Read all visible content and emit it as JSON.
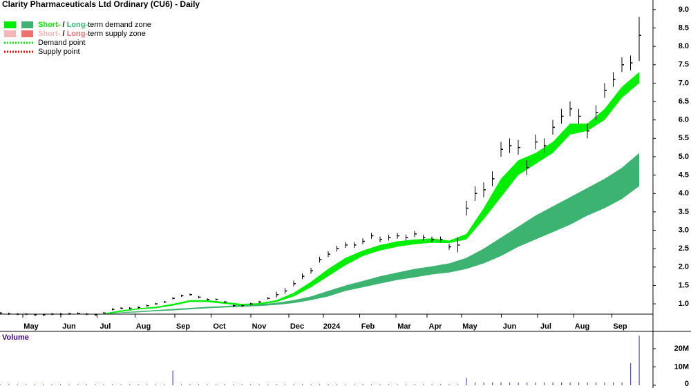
{
  "chart_data": {
    "type": "stock",
    "title": "Clarity Pharmaceuticals Ltd Ordinary (CU6) - Daily",
    "legend": [
      {
        "parts": [
          "Short-",
          " / ",
          "Long-",
          "term demand zone"
        ],
        "colors": [
          "#00ee00",
          "#3cb371"
        ]
      },
      {
        "parts": [
          "Short-",
          " / ",
          "Long-",
          "term supply zone"
        ],
        "colors": [
          "#f4b6b6",
          "#f07070"
        ]
      },
      {
        "parts": [
          "Demand point"
        ],
        "colors": [
          "#00ee00"
        ]
      },
      {
        "parts": [
          "Supply point"
        ],
        "colors": [
          "#ee0000"
        ]
      }
    ],
    "xlim": [
      0,
      378
    ],
    "xticks": [
      {
        "value": 18,
        "label": "May"
      },
      {
        "value": 40,
        "label": "Jun"
      },
      {
        "value": 61,
        "label": "Jul"
      },
      {
        "value": 83,
        "label": "Aug"
      },
      {
        "value": 106,
        "label": "Sep"
      },
      {
        "value": 127,
        "label": "Oct"
      },
      {
        "value": 150,
        "label": "Nov"
      },
      {
        "value": 172,
        "label": "Dec"
      },
      {
        "value": 192,
        "label": "2024"
      },
      {
        "value": 213,
        "label": "Feb"
      },
      {
        "value": 234,
        "label": "Mar"
      },
      {
        "value": 252,
        "label": "Apr"
      },
      {
        "value": 272,
        "label": "May"
      },
      {
        "value": 295,
        "label": "Jun"
      },
      {
        "value": 316,
        "label": "Jul"
      },
      {
        "value": 337,
        "label": "Aug"
      },
      {
        "value": 359,
        "label": "Sep"
      }
    ],
    "ylim": [
      0.72,
      9.26
    ],
    "yticks": [
      {
        "value": 1,
        "label": "1.0"
      },
      {
        "value": 1.5,
        "label": "1.5"
      },
      {
        "value": 2,
        "label": "2.0"
      },
      {
        "value": 2.5,
        "label": "2.5"
      },
      {
        "value": 3,
        "label": "3.0"
      },
      {
        "value": 3.5,
        "label": "3.5"
      },
      {
        "value": 4,
        "label": "4.0"
      },
      {
        "value": 4.5,
        "label": "4.5"
      },
      {
        "value": 5,
        "label": "5.0"
      },
      {
        "value": 5.5,
        "label": "5.5"
      },
      {
        "value": 6,
        "label": "6.0"
      },
      {
        "value": 6.5,
        "label": "6.5"
      },
      {
        "value": 7,
        "label": "7.0"
      },
      {
        "value": 7.5,
        "label": "7.5"
      },
      {
        "value": 8,
        "label": "8.0"
      },
      {
        "value": 8.5,
        "label": "8.5"
      },
      {
        "value": 9,
        "label": "9.0"
      }
    ],
    "x": [
      0,
      5,
      10,
      15,
      20,
      25,
      30,
      35,
      40,
      45,
      50,
      55,
      60,
      65,
      70,
      75,
      80,
      85,
      90,
      95,
      100,
      105,
      110,
      115,
      120,
      125,
      130,
      135,
      140,
      145,
      150,
      155,
      160,
      165,
      170,
      175,
      180,
      185,
      190,
      195,
      200,
      205,
      210,
      215,
      220,
      225,
      230,
      235,
      240,
      245,
      250,
      255,
      260,
      265,
      270,
      275,
      280,
      285,
      290,
      295,
      300,
      305,
      310,
      315,
      320,
      325,
      330,
      335,
      340,
      345,
      350,
      355,
      360,
      365,
      370
    ],
    "close": [
      0.75,
      0.73,
      0.72,
      0.72,
      0.7,
      0.7,
      0.72,
      0.72,
      0.73,
      0.74,
      0.72,
      0.7,
      0.75,
      0.85,
      0.88,
      0.88,
      0.9,
      0.95,
      1.0,
      1.05,
      1.15,
      1.22,
      1.25,
      1.18,
      1.12,
      1.12,
      1.05,
      0.95,
      0.95,
      1.0,
      1.05,
      1.15,
      1.25,
      1.35,
      1.55,
      1.75,
      1.9,
      2.2,
      2.35,
      2.5,
      2.6,
      2.6,
      2.7,
      2.85,
      2.75,
      2.8,
      2.85,
      2.8,
      2.9,
      2.8,
      2.75,
      2.75,
      2.55,
      2.6,
      3.6,
      4.0,
      4.1,
      4.4,
      5.2,
      5.3,
      5.25,
      4.7,
      5.4,
      5.3,
      5.8,
      6.1,
      6.3,
      6.1,
      5.7,
      6.2,
      6.8,
      7.1,
      7.5,
      7.55,
      8.3
    ],
    "high": [
      0.78,
      0.76,
      0.75,
      0.75,
      0.73,
      0.73,
      0.75,
      0.75,
      0.76,
      0.77,
      0.75,
      0.73,
      0.78,
      0.88,
      0.91,
      0.91,
      0.93,
      0.98,
      1.03,
      1.08,
      1.18,
      1.25,
      1.28,
      1.21,
      1.15,
      1.15,
      1.08,
      0.98,
      0.98,
      1.03,
      1.08,
      1.18,
      1.33,
      1.43,
      1.63,
      1.83,
      1.98,
      2.28,
      2.43,
      2.58,
      2.68,
      2.68,
      2.78,
      2.93,
      2.83,
      2.88,
      2.93,
      2.88,
      2.98,
      2.88,
      2.83,
      2.83,
      2.63,
      2.8,
      3.8,
      4.2,
      4.3,
      4.6,
      5.4,
      5.5,
      5.45,
      4.9,
      5.6,
      5.5,
      6.0,
      6.3,
      6.5,
      6.3,
      5.9,
      6.4,
      7.0,
      7.3,
      7.7,
      7.75,
      8.8
    ],
    "low": [
      0.72,
      0.7,
      0.69,
      0.69,
      0.67,
      0.67,
      0.69,
      0.69,
      0.7,
      0.71,
      0.69,
      0.67,
      0.72,
      0.82,
      0.85,
      0.85,
      0.87,
      0.92,
      0.97,
      1.02,
      1.12,
      1.19,
      1.22,
      1.15,
      1.09,
      1.09,
      1.02,
      0.92,
      0.92,
      0.97,
      1.02,
      1.12,
      1.17,
      1.27,
      1.47,
      1.67,
      1.82,
      2.12,
      2.27,
      2.42,
      2.52,
      2.52,
      2.62,
      2.77,
      2.67,
      2.72,
      2.77,
      2.72,
      2.82,
      2.72,
      2.67,
      2.67,
      2.47,
      2.4,
      3.4,
      3.8,
      3.9,
      4.2,
      5.0,
      5.1,
      5.05,
      4.5,
      5.2,
      5.1,
      5.6,
      5.9,
      6.1,
      5.9,
      5.5,
      6.0,
      6.6,
      6.9,
      7.3,
      7.35,
      7.6
    ],
    "band_x": [
      0,
      10,
      20,
      30,
      40,
      50,
      60,
      70,
      80,
      90,
      100,
      110,
      120,
      130,
      140,
      150,
      160,
      170,
      180,
      190,
      200,
      210,
      220,
      230,
      240,
      250,
      260,
      270,
      280,
      290,
      300,
      310,
      320,
      330,
      340,
      350,
      360,
      370
    ],
    "bands": [
      {
        "color": "#3cb371",
        "lower": [
          null,
          null,
          null,
          null,
          null,
          null,
          0.72,
          0.75,
          0.77,
          0.8,
          0.82,
          0.85,
          0.88,
          0.9,
          0.92,
          0.94,
          0.97,
          1.02,
          1.1,
          1.2,
          1.35,
          1.45,
          1.55,
          1.65,
          1.72,
          1.8,
          1.85,
          1.95,
          2.1,
          2.3,
          2.55,
          2.75,
          2.95,
          3.15,
          3.4,
          3.6,
          3.85,
          4.2
        ],
        "upper": [
          null,
          null,
          null,
          null,
          null,
          null,
          0.74,
          0.77,
          0.8,
          0.83,
          0.86,
          0.89,
          0.92,
          0.94,
          0.97,
          0.99,
          1.03,
          1.1,
          1.2,
          1.35,
          1.5,
          1.62,
          1.75,
          1.85,
          1.95,
          2.02,
          2.1,
          2.25,
          2.5,
          2.8,
          3.1,
          3.4,
          3.65,
          3.9,
          4.15,
          4.4,
          4.7,
          5.1
        ]
      },
      {
        "color": "#00ee00",
        "lower": [
          null,
          null,
          null,
          null,
          null,
          null,
          0.72,
          0.78,
          0.85,
          0.88,
          0.95,
          1.05,
          1.05,
          1.0,
          0.95,
          0.98,
          1.05,
          1.2,
          1.45,
          1.75,
          2.05,
          2.3,
          2.45,
          2.55,
          2.62,
          2.66,
          2.65,
          2.75,
          3.3,
          3.9,
          4.5,
          4.8,
          5.1,
          5.6,
          5.7,
          6.0,
          6.6,
          7.0
        ],
        "upper": [
          null,
          null,
          null,
          null,
          null,
          null,
          0.74,
          0.82,
          0.88,
          0.92,
          1.0,
          1.1,
          1.1,
          1.05,
          1.0,
          1.02,
          1.1,
          1.3,
          1.6,
          1.95,
          2.25,
          2.45,
          2.6,
          2.7,
          2.75,
          2.78,
          2.72,
          2.9,
          3.6,
          4.4,
          4.9,
          5.1,
          5.4,
          5.9,
          5.9,
          6.3,
          6.9,
          7.3
        ]
      }
    ],
    "volume_title": "Volume",
    "volume_color": "#5050c8",
    "volume": [
      500000,
      500000,
      500000,
      500000,
      500000,
      500000,
      500000,
      500000,
      500000,
      500000,
      500000,
      500000,
      500000,
      500000,
      500000,
      500000,
      500000,
      500000,
      500000,
      500000,
      8000000,
      500000,
      500000,
      500000,
      500000,
      500000,
      500000,
      500000,
      500000,
      500000,
      500000,
      500000,
      500000,
      500000,
      500000,
      500000,
      500000,
      500000,
      500000,
      500000,
      500000,
      500000,
      500000,
      500000,
      500000,
      500000,
      500000,
      500000,
      500000,
      500000,
      500000,
      500000,
      500000,
      500000,
      4000000,
      1500000,
      1500000,
      1500000,
      1500000,
      1500000,
      1500000,
      1500000,
      1500000,
      1500000,
      1500000,
      1500000,
      1500000,
      1500000,
      1500000,
      1500000,
      1500000,
      1500000,
      1500000,
      12000000,
      27000000
    ],
    "vlim": [
      0,
      27500000
    ],
    "vticks": [
      {
        "value": 20000000,
        "label": "20M"
      },
      {
        "value": 10000000,
        "label": "10M"
      },
      0
    ]
  }
}
